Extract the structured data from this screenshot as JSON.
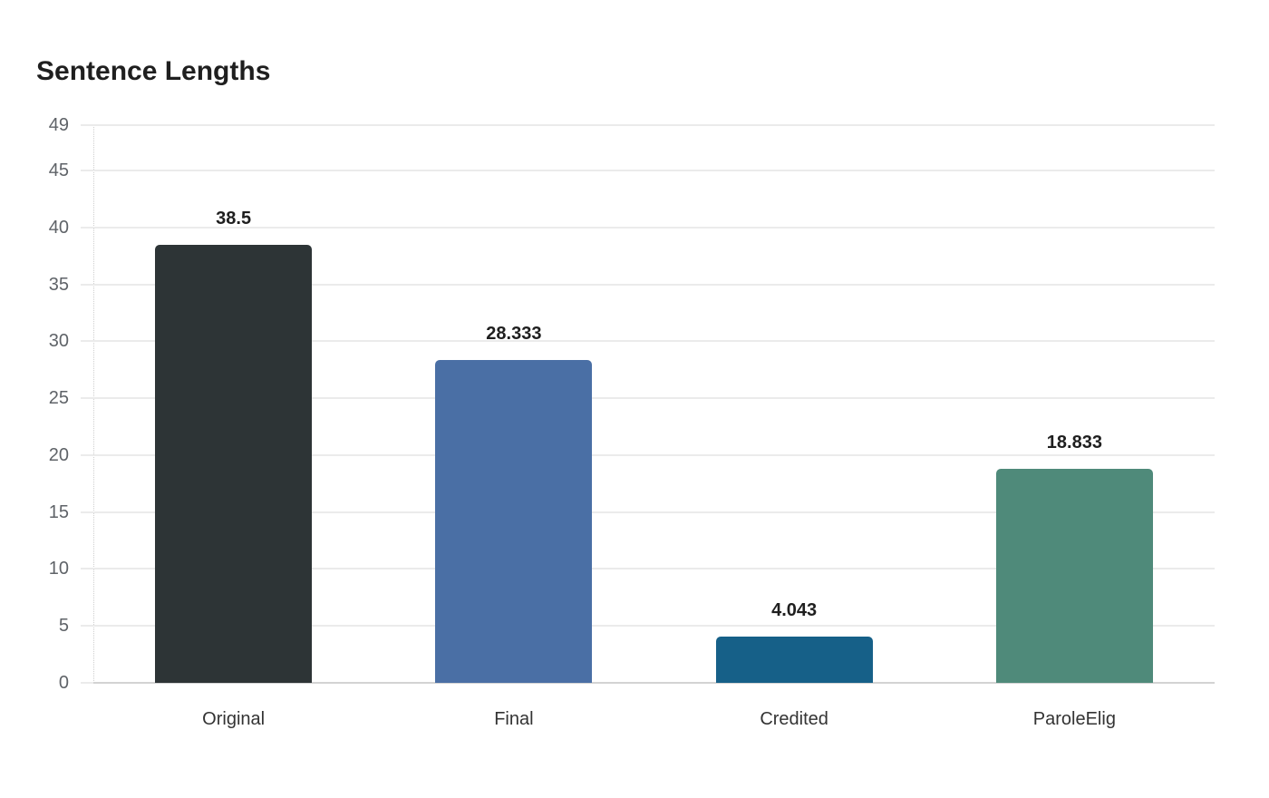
{
  "title": "Sentence Lengths",
  "chart_data": {
    "type": "bar",
    "title": "Sentence Lengths",
    "xlabel": "",
    "ylabel": "",
    "categories": [
      "Original",
      "Final",
      "Credited",
      "ParoleElig"
    ],
    "values": [
      38.5,
      28.333,
      4.043,
      18.833
    ],
    "value_labels": [
      "38.5",
      "28.333",
      "4.043",
      "18.833"
    ],
    "colors": [
      "#2d3436",
      "#4a6fa5",
      "#166088",
      "#4f8a7a"
    ],
    "ylim": [
      0,
      49
    ],
    "yticks": [
      0,
      5,
      10,
      15,
      20,
      25,
      30,
      35,
      40,
      45,
      49
    ],
    "grid": true,
    "legend": null
  }
}
